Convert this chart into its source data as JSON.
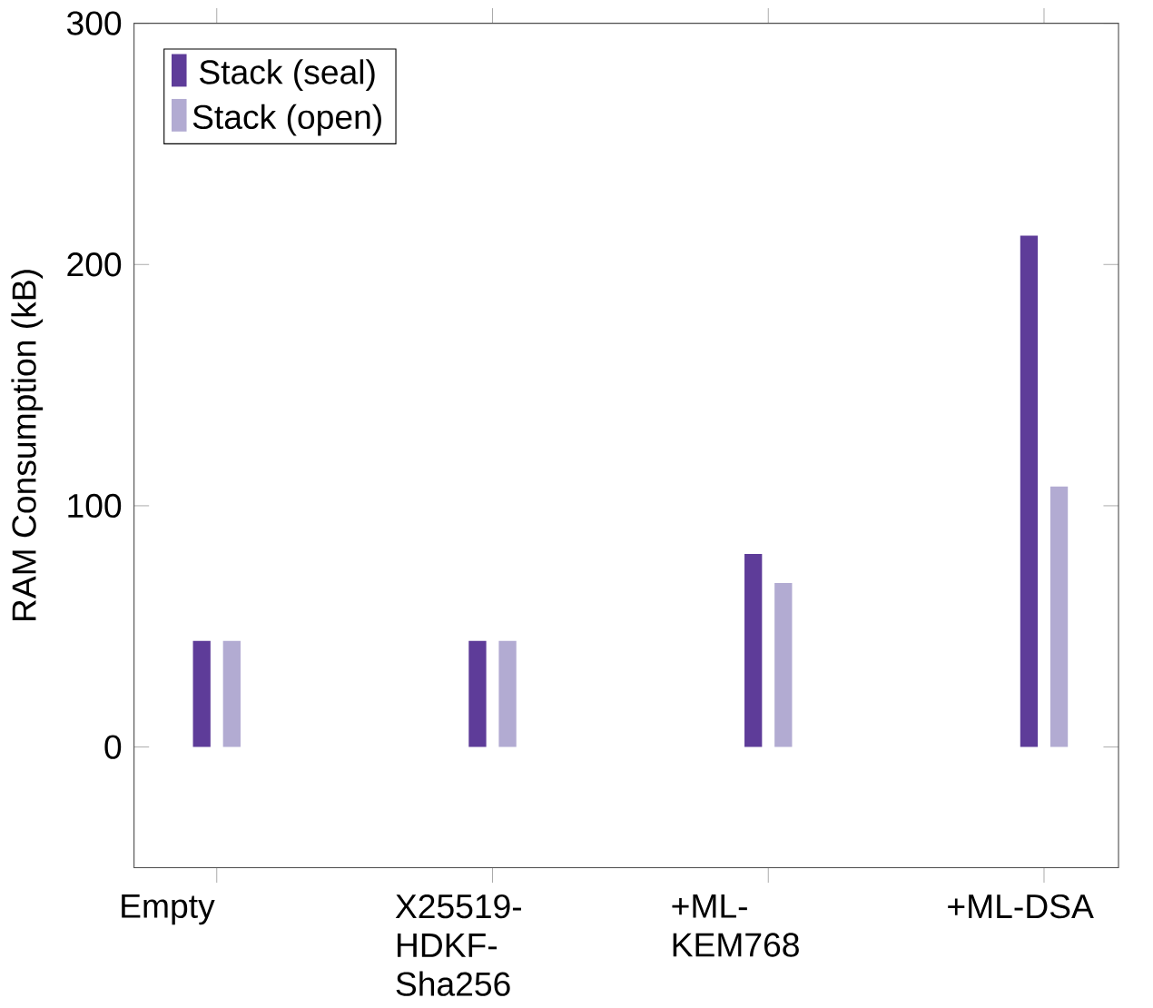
{
  "chart_data": {
    "type": "bar",
    "ylabel": "RAM Consumption (kB)",
    "categories": [
      "Empty",
      "X25519-HDKF-Sha256",
      "+ML-KEM768",
      "+ML-DSA"
    ],
    "series": [
      {
        "name": "Stack (seal)",
        "color": "#5e3c99",
        "values": [
          44,
          44,
          80,
          212
        ]
      },
      {
        "name": "Stack (open)",
        "color": "#b2abd2",
        "values": [
          44,
          44,
          68,
          108
        ]
      }
    ],
    "ylim": [
      -50,
      300
    ],
    "yticks": [
      0,
      100,
      200,
      300
    ],
    "legend": "top left",
    "grid": false
  }
}
